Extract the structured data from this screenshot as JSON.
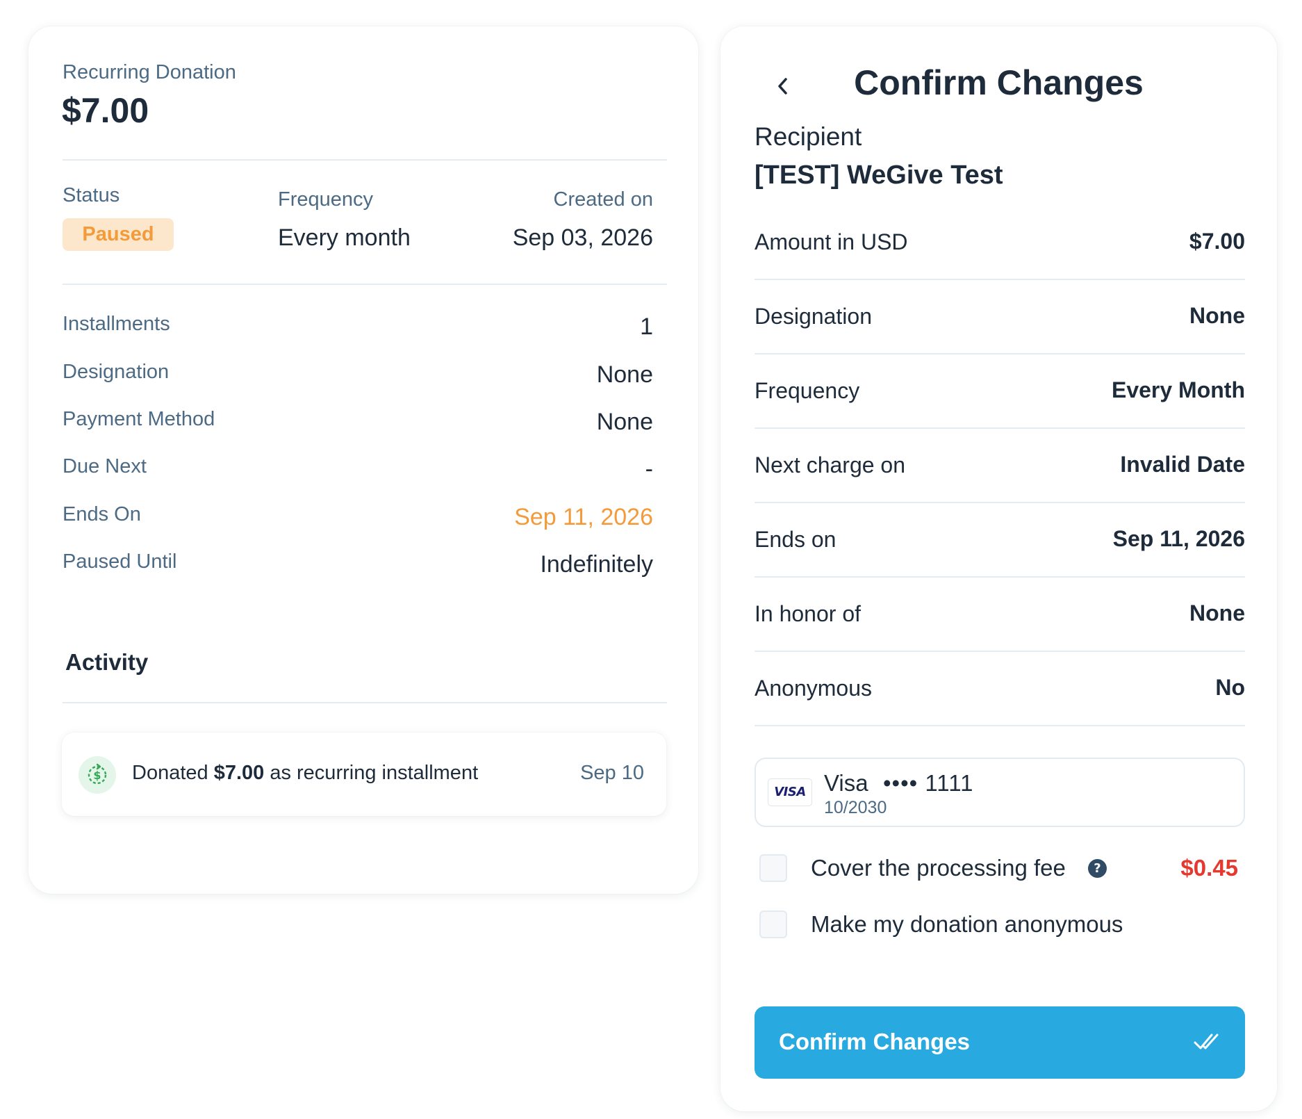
{
  "left": {
    "header_label": "Recurring Donation",
    "amount": "$7.00",
    "status_label": "Status",
    "status_value": "Paused",
    "frequency_label": "Frequency",
    "frequency_value": "Every month",
    "created_label": "Created on",
    "created_value": "Sep 03, 2026",
    "details": [
      {
        "label": "Installments",
        "value": "1"
      },
      {
        "label": "Designation",
        "value": "None"
      },
      {
        "label": "Payment Method",
        "value": "None"
      },
      {
        "label": "Due Next",
        "value": "-"
      },
      {
        "label": "Ends On",
        "value": "Sep 11, 2026"
      },
      {
        "label": "Paused Until",
        "value": "Indefinitely"
      }
    ],
    "activity_title": "Activity",
    "activity": {
      "prefix": "Donated ",
      "amount": "$7.00",
      "suffix": " as recurring installment",
      "date": "Sep 10",
      "icon": "recurring-dollar-icon"
    }
  },
  "right": {
    "title": "Confirm Changes",
    "back_icon": "chevron-left-icon",
    "recipient_label": "Recipient",
    "recipient_name": "[TEST] WeGive Test",
    "rows": [
      {
        "label": "Amount in USD",
        "value": "$7.00"
      },
      {
        "label": "Designation",
        "value": "None"
      },
      {
        "label": "Frequency",
        "value": "Every Month"
      },
      {
        "label": "Next charge on",
        "value": "Invalid Date"
      },
      {
        "label": "Ends on",
        "value": "Sep 11, 2026"
      },
      {
        "label": "In honor of",
        "value": "None"
      },
      {
        "label": "Anonymous",
        "value": "No"
      }
    ],
    "payment": {
      "brand_logo": "VISA",
      "brand": "Visa",
      "masked": "•••• 1111",
      "expiry": "10/2030"
    },
    "cover_fee_label": "Cover the processing fee",
    "cover_fee_amount": "$0.45",
    "cover_fee_checked": false,
    "anonymous_label": "Make my donation anonymous",
    "anonymous_checked": false,
    "confirm_button": "Confirm Changes",
    "confirm_icon": "double-check-icon"
  },
  "colors": {
    "accent": "#28a9e0",
    "paused_bg": "#fde7cc",
    "paused_text": "#f39a3a",
    "ends_on": "#f39a3a",
    "fee": "#e5392f",
    "muted_label": "#4c6a84",
    "text": "#1e2b3a"
  }
}
